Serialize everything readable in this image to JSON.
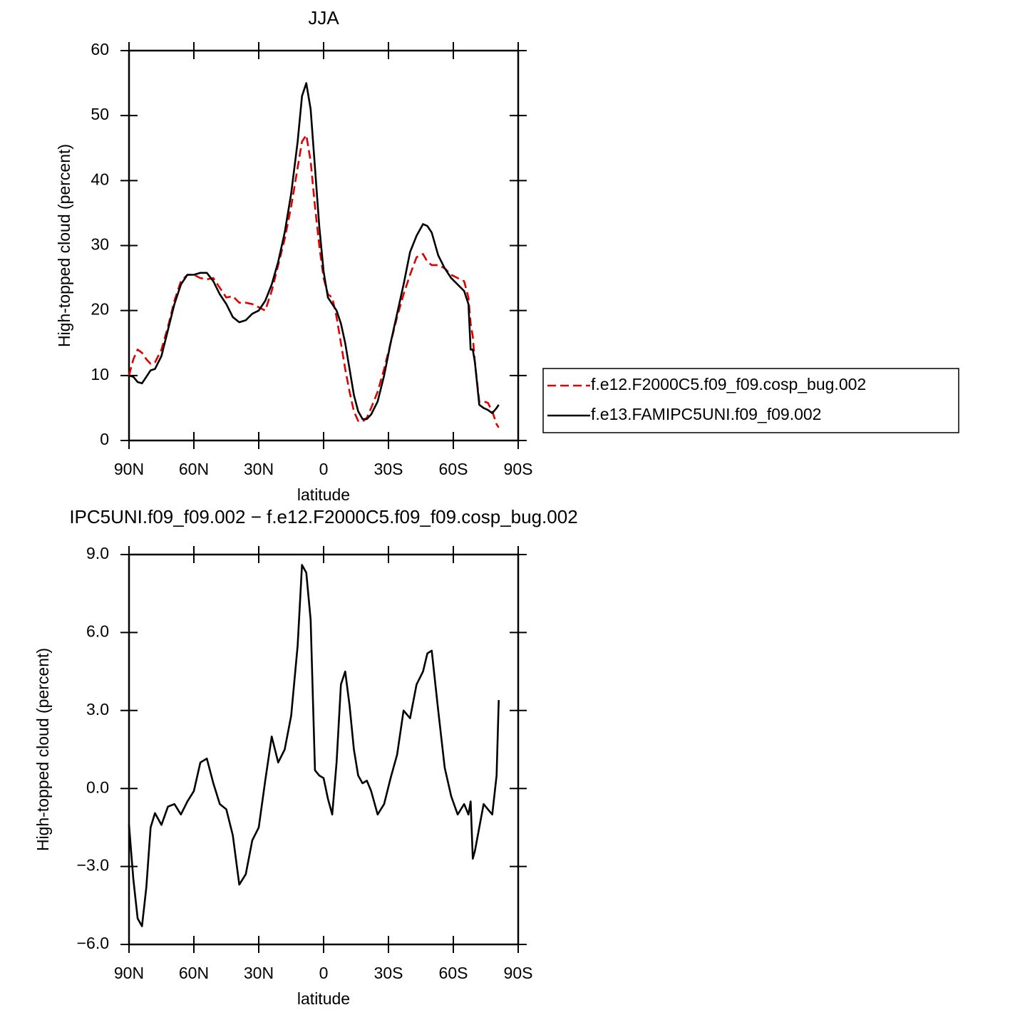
{
  "chart_data": [
    {
      "type": "line",
      "title": "JJA",
      "xlabel": "latitude",
      "ylabel": "High-topped cloud (percent)",
      "x": [
        90,
        88,
        86,
        84,
        82,
        80,
        78,
        75,
        72,
        69,
        66,
        63,
        60,
        57,
        54,
        51,
        48,
        45,
        42,
        39,
        36,
        33,
        30,
        27,
        24,
        21,
        18,
        15,
        12,
        10,
        8,
        6,
        4,
        2,
        0,
        -2,
        -4,
        -6,
        -8,
        -10,
        -12,
        -14,
        -16,
        -18,
        -20,
        -22,
        -25,
        -28,
        -31,
        -34,
        -37,
        -40,
        -43,
        -46,
        -48,
        -50,
        -53,
        -56,
        -59,
        -62,
        -65,
        -67,
        -68,
        -69,
        -70,
        -72,
        -74,
        -76,
        -78,
        -80,
        -81
      ],
      "series": [
        {
          "name": "f.e12.F2000C5.f09_f09.cosp_bug.002",
          "color": "#e00000",
          "dash": true,
          "values": [
            10,
            12.5,
            14,
            13.5,
            12.5,
            11.8,
            12,
            14,
            17.5,
            21.5,
            24.5,
            25.5,
            25.5,
            25,
            24.8,
            25,
            23.5,
            22,
            22.2,
            21.2,
            21.2,
            21,
            20.5,
            20,
            23,
            27,
            31,
            36,
            42,
            46,
            47,
            43,
            36,
            30,
            25,
            22.5,
            22,
            19,
            15,
            11,
            7.5,
            4.5,
            3,
            2.9,
            3.5,
            5,
            7.5,
            11,
            15,
            19,
            22.5,
            25.5,
            28.2,
            28.7,
            27.5,
            27,
            27,
            26.5,
            25.5,
            25,
            24.5,
            22,
            18,
            16,
            12,
            6,
            6,
            5.8,
            4.5,
            2.5,
            2
          ]
        },
        {
          "name": "f.e13.FAMIPC5UNI.f09_f09.002",
          "color": "#000000",
          "dash": false,
          "values": [
            10,
            9.8,
            9,
            8.8,
            9.8,
            10.8,
            11,
            13,
            17,
            21,
            24,
            25.5,
            25.5,
            25.8,
            25.8,
            24.5,
            22.5,
            21,
            19,
            18.2,
            18.5,
            19.5,
            20,
            21.5,
            24,
            27.5,
            32,
            38,
            46,
            53,
            55,
            51,
            42,
            33,
            26,
            22,
            21,
            20,
            18,
            15,
            11,
            7,
            4.5,
            3.3,
            3.3,
            4,
            6,
            10,
            15,
            19.5,
            24,
            29,
            31.5,
            33.3,
            33,
            32,
            28.5,
            26.5,
            25,
            24,
            23,
            21,
            14,
            14,
            12,
            5.5,
            5,
            4.7,
            4.2,
            5,
            5.5
          ]
        }
      ],
      "xlim": [
        90,
        -90
      ],
      "xticks": [
        {
          "value": 90,
          "label": "90N"
        },
        {
          "value": 60,
          "label": "60N"
        },
        {
          "value": 30,
          "label": "30N"
        },
        0,
        {
          "value": -30,
          "label": "30S"
        },
        {
          "value": -60,
          "label": "60S"
        },
        {
          "value": -90,
          "label": "90S"
        }
      ],
      "ylim": [
        0,
        60
      ],
      "yticks": [
        0,
        10,
        20,
        30,
        40,
        50,
        60
      ],
      "legend": "right"
    },
    {
      "type": "line",
      "title": "IPC5UNI.f09_f09.002 − f.e12.F2000C5.f09_f09.cosp_bug.002",
      "xlabel": "latitude",
      "ylabel": "High-topped cloud (percent)",
      "x": [
        90,
        88,
        86,
        84,
        82,
        80,
        78,
        75,
        72,
        69,
        66,
        63,
        60,
        57,
        54,
        51,
        48,
        45,
        42,
        39,
        36,
        33,
        30,
        27,
        24,
        21,
        18,
        15,
        12,
        10,
        8,
        6,
        4,
        2,
        0,
        -2,
        -4,
        -6,
        -8,
        -10,
        -12,
        -14,
        -16,
        -18,
        -20,
        -22,
        -25,
        -28,
        -31,
        -34,
        -37,
        -40,
        -43,
        -46,
        -48,
        -50,
        -53,
        -56,
        -59,
        -62,
        -65,
        -67,
        -68,
        -69,
        -70,
        -72,
        -74,
        -76,
        -78,
        -80,
        -81
      ],
      "series": [
        {
          "color": "#000000",
          "dash": false,
          "values": [
            -1.4,
            -3.5,
            -5,
            -5.3,
            -3.8,
            -1.5,
            -0.95,
            -1.4,
            -0.7,
            -0.6,
            -1,
            -0.5,
            -0.1,
            1,
            1.15,
            0.2,
            -0.6,
            -0.8,
            -1.8,
            -3.7,
            -3.3,
            -2,
            -1.5,
            0.3,
            2,
            1,
            1.5,
            2.8,
            5.5,
            8.6,
            8.3,
            6.5,
            0.7,
            0.5,
            0.4,
            -0.4,
            -1,
            1,
            4,
            4.5,
            3.2,
            1.5,
            0.5,
            0.2,
            0.3,
            -0.1,
            -1,
            -0.6,
            0.4,
            1.3,
            3,
            2.7,
            4,
            4.5,
            5.2,
            5.3,
            3,
            0.8,
            -0.3,
            -1,
            -0.6,
            -1,
            -0.5,
            -2.7,
            -2.4,
            -1.5,
            -0.6,
            -0.8,
            -1,
            0.5,
            3.4
          ]
        }
      ],
      "xlim": [
        90,
        -90
      ],
      "xticks": [
        {
          "value": 90,
          "label": "90N"
        },
        {
          "value": 60,
          "label": "60N"
        },
        {
          "value": 30,
          "label": "30N"
        },
        0,
        {
          "value": -30,
          "label": "30S"
        },
        {
          "value": -60,
          "label": "60S"
        },
        {
          "value": -90,
          "label": "90S"
        }
      ],
      "ylim": [
        -6,
        9
      ],
      "yticks": [
        {
          "value": -6,
          "label": "−6.0"
        },
        {
          "value": -3,
          "label": "−3.0"
        },
        {
          "value": 0,
          "label": "0.0"
        },
        {
          "value": 3,
          "label": "3.0"
        },
        {
          "value": 6,
          "label": "6.0"
        },
        {
          "value": 9,
          "label": "9.0"
        }
      ]
    }
  ]
}
